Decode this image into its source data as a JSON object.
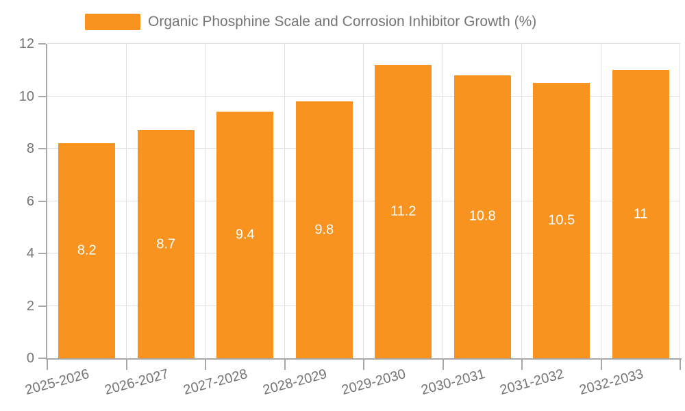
{
  "chart_data": {
    "type": "bar",
    "title": "",
    "legend": [
      "Organic Phosphine Scale and Corrosion Inhibitor Growth (%)"
    ],
    "legend_position": "top",
    "categories": [
      "2025-2026",
      "2026-2027",
      "2027-2028",
      "2028-2029",
      "2029-2030",
      "2030-2031",
      "2031-2032",
      "2032-2033"
    ],
    "values": [
      8.2,
      8.7,
      9.4,
      9.8,
      11.2,
      10.8,
      10.5,
      11
    ],
    "value_labels": [
      "8.2",
      "8.7",
      "9.4",
      "9.8",
      "11.2",
      "10.8",
      "10.5",
      "11"
    ],
    "xlabel": "",
    "ylabel": "",
    "ylim": [
      0,
      12
    ],
    "yticks": [
      0,
      2,
      4,
      6,
      8,
      10,
      12
    ],
    "grid": true,
    "x_label_rotation_deg": -15,
    "colors": {
      "bar": "#F7931E",
      "value_label": "#FFFFFF",
      "axis_text": "#757575",
      "gridline": "#E0E0E0",
      "axis_line": "#A8A8A8",
      "background": "#FFFFFF"
    }
  }
}
